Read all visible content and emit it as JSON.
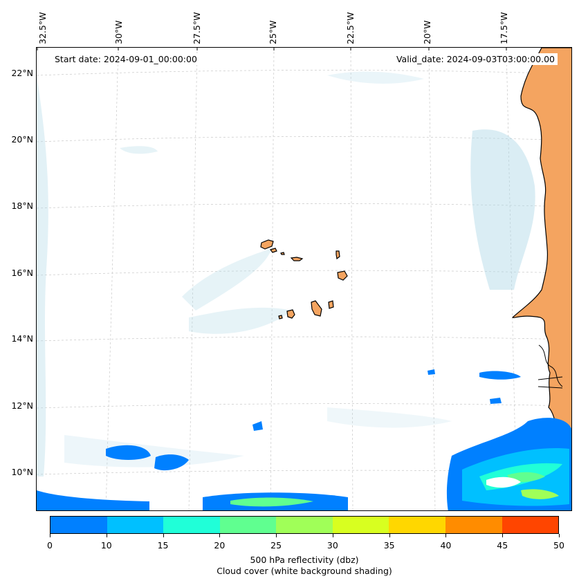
{
  "map": {
    "start_date_label": "Start date: 2024-09-01_00:00:00",
    "valid_date_label": "Valid_date: 2024-09-03T03:00:00.00",
    "longitude_labels": [
      "32.5°W",
      "30°W",
      "27.5°W",
      "25°W",
      "22.5°W",
      "20°W",
      "17.5°W"
    ],
    "latitude_labels": [
      "22°N",
      "20°N",
      "18°N",
      "16°N",
      "14°N",
      "12°N",
      "10°N"
    ],
    "land_color": "#f4a460",
    "coastline_color": "#000000",
    "cloud_color": "#add8e6",
    "gridlines": true
  },
  "colorbar": {
    "ticks": [
      "0",
      "10",
      "15",
      "20",
      "25",
      "30",
      "35",
      "40",
      "45",
      "50"
    ],
    "colors": [
      "#0080ff",
      "#00c0ff",
      "#20ffd8",
      "#60ff90",
      "#a0ff58",
      "#d8ff20",
      "#ffd700",
      "#ff8c00",
      "#ff4500"
    ],
    "label_line1": "500 hPa reflectivity (dbz)",
    "label_line2": "Cloud cover (white background shading)"
  }
}
